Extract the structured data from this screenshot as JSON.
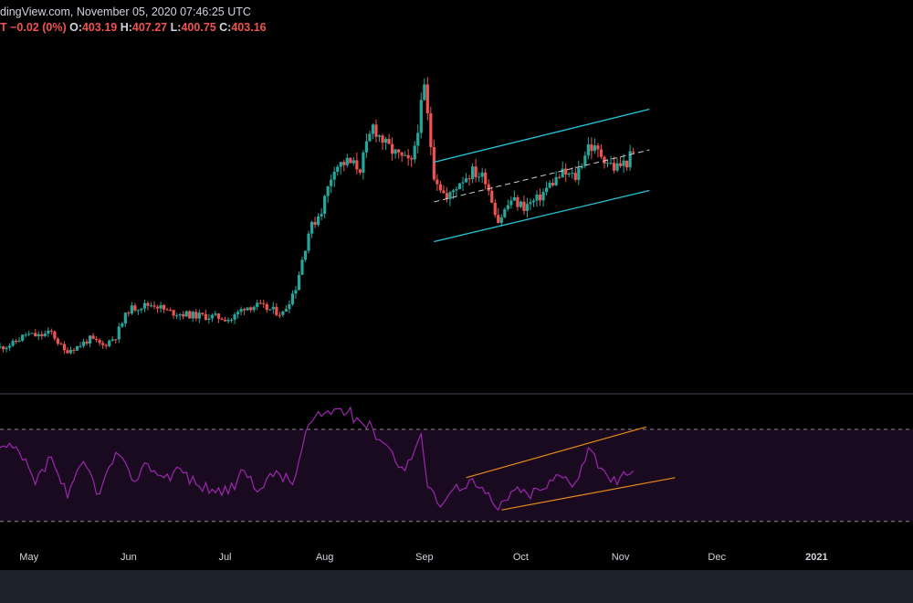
{
  "header": {
    "source": "dingView.com, November 05, 2020 07:46:25 UTC",
    "change": "T −0.02 (0%)",
    "open_label": "O:",
    "open": "403.19",
    "high_label": "H:",
    "high": "407.27",
    "low_label": "L:",
    "low": "400.75",
    "close_label": "C:",
    "close": "403.16"
  },
  "colors": {
    "background": "#000000",
    "up": "#26a69a",
    "down": "#ef5350",
    "channel": "#26c6da",
    "rsi_line": "#9c27b0",
    "rsi_band": "#1a0a1f",
    "rsi_trend": "#e68a1a",
    "footer": "#1e222d"
  },
  "chart_data": [
    {
      "type": "candlestick",
      "x_axis": {
        "ticks": [
          {
            "label": "May",
            "date": "2020-05-01"
          },
          {
            "label": "Jun",
            "date": "2020-06-01"
          },
          {
            "label": "Jul",
            "date": "2020-07-01"
          },
          {
            "label": "Aug",
            "date": "2020-08-01"
          },
          {
            "label": "Sep",
            "date": "2020-09-01"
          },
          {
            "label": "Oct",
            "date": "2020-10-01"
          },
          {
            "label": "Nov",
            "date": "2020-11-01"
          },
          {
            "label": "Dec",
            "date": "2020-12-01"
          },
          {
            "label": "2021",
            "date": "2021-01-01",
            "bold": true
          }
        ],
        "range": [
          "2020-04-22",
          "2021-01-31"
        ]
      },
      "y_range": [
        150,
        520
      ],
      "close_series": [
        [
          "2020-04-22",
          196
        ],
        [
          "2020-04-26",
          200
        ],
        [
          "2020-04-30",
          210
        ],
        [
          "2020-05-04",
          208
        ],
        [
          "2020-05-08",
          212
        ],
        [
          "2020-05-12",
          192
        ],
        [
          "2020-05-16",
          197
        ],
        [
          "2020-05-20",
          205
        ],
        [
          "2020-05-24",
          198
        ],
        [
          "2020-05-28",
          208
        ],
        [
          "2020-06-01",
          236
        ],
        [
          "2020-06-05",
          240
        ],
        [
          "2020-06-09",
          242
        ],
        [
          "2020-06-13",
          234
        ],
        [
          "2020-06-17",
          232
        ],
        [
          "2020-06-21",
          230
        ],
        [
          "2020-06-25",
          229
        ],
        [
          "2020-06-29",
          228
        ],
        [
          "2020-07-03",
          226
        ],
        [
          "2020-07-07",
          239
        ],
        [
          "2020-07-11",
          240
        ],
        [
          "2020-07-15",
          236
        ],
        [
          "2020-07-19",
          232
        ],
        [
          "2020-07-23",
          260
        ],
        [
          "2020-07-27",
          318
        ],
        [
          "2020-07-31",
          342
        ],
        [
          "2020-08-04",
          388
        ],
        [
          "2020-08-08",
          392
        ],
        [
          "2020-08-12",
          386
        ],
        [
          "2020-08-16",
          430
        ],
        [
          "2020-08-20",
          410
        ],
        [
          "2020-08-24",
          398
        ],
        [
          "2020-08-28",
          390
        ],
        [
          "2020-09-01",
          470
        ],
        [
          "2020-09-04",
          380
        ],
        [
          "2020-09-08",
          352
        ],
        [
          "2020-09-12",
          372
        ],
        [
          "2020-09-16",
          382
        ],
        [
          "2020-09-20",
          375
        ],
        [
          "2020-09-24",
          330
        ],
        [
          "2020-09-28",
          352
        ],
        [
          "2020-10-02",
          345
        ],
        [
          "2020-10-06",
          352
        ],
        [
          "2020-10-10",
          368
        ],
        [
          "2020-10-14",
          380
        ],
        [
          "2020-10-18",
          376
        ],
        [
          "2020-10-22",
          410
        ],
        [
          "2020-10-26",
          400
        ],
        [
          "2020-10-30",
          386
        ],
        [
          "2020-11-03",
          392
        ],
        [
          "2020-11-05",
          403
        ]
      ],
      "last": {
        "open": 403.19,
        "high": 407.27,
        "low": 400.75,
        "close": 403.16
      },
      "channel": {
        "upper": [
          [
            "2020-09-04",
            392
          ],
          [
            "2020-11-10",
            448
          ]
        ],
        "middle": [
          [
            "2020-09-04",
            350
          ],
          [
            "2020-11-10",
            405
          ]
        ],
        "lower": [
          [
            "2020-09-04",
            308
          ],
          [
            "2020-11-10",
            362
          ]
        ]
      }
    },
    {
      "type": "line",
      "indicator": "RSI",
      "y_range": [
        20,
        85
      ],
      "bands": [
        30,
        70
      ],
      "series": [
        {
          "points": [
            [
              "2020-04-22",
              62
            ],
            [
              "2020-04-28",
              60
            ],
            [
              "2020-05-03",
              46
            ],
            [
              "2020-05-08",
              58
            ],
            [
              "2020-05-13",
              40
            ],
            [
              "2020-05-18",
              56
            ],
            [
              "2020-05-23",
              42
            ],
            [
              "2020-05-28",
              60
            ],
            [
              "2020-06-02",
              48
            ],
            [
              "2020-06-07",
              55
            ],
            [
              "2020-06-12",
              49
            ],
            [
              "2020-06-17",
              53
            ],
            [
              "2020-06-22",
              46
            ],
            [
              "2020-06-27",
              44
            ],
            [
              "2020-07-02",
              42
            ],
            [
              "2020-07-07",
              52
            ],
            [
              "2020-07-12",
              44
            ],
            [
              "2020-07-17",
              52
            ],
            [
              "2020-07-22",
              46
            ],
            [
              "2020-07-27",
              72
            ],
            [
              "2020-08-01",
              77
            ],
            [
              "2020-08-06",
              79
            ],
            [
              "2020-08-11",
              75
            ],
            [
              "2020-08-16",
              70
            ],
            [
              "2020-08-21",
              62
            ],
            [
              "2020-08-26",
              52
            ],
            [
              "2020-08-31",
              68
            ],
            [
              "2020-09-02",
              45
            ],
            [
              "2020-09-05",
              38
            ],
            [
              "2020-09-10",
              44
            ],
            [
              "2020-09-15",
              48
            ],
            [
              "2020-09-20",
              42
            ],
            [
              "2020-09-24",
              35
            ],
            [
              "2020-09-28",
              43
            ],
            [
              "2020-10-03",
              42
            ],
            [
              "2020-10-08",
              44
            ],
            [
              "2020-10-13",
              50
            ],
            [
              "2020-10-18",
              47
            ],
            [
              "2020-10-22",
              62
            ],
            [
              "2020-10-27",
              52
            ],
            [
              "2020-10-31",
              46
            ],
            [
              "2020-11-03",
              50
            ],
            [
              "2020-11-05",
              52
            ]
          ]
        }
      ],
      "trend_lines": [
        [
          [
            "2020-09-14",
            49
          ],
          [
            "2020-11-09",
            71
          ]
        ],
        [
          [
            "2020-09-25",
            35
          ],
          [
            "2020-11-18",
            49
          ]
        ]
      ]
    }
  ]
}
